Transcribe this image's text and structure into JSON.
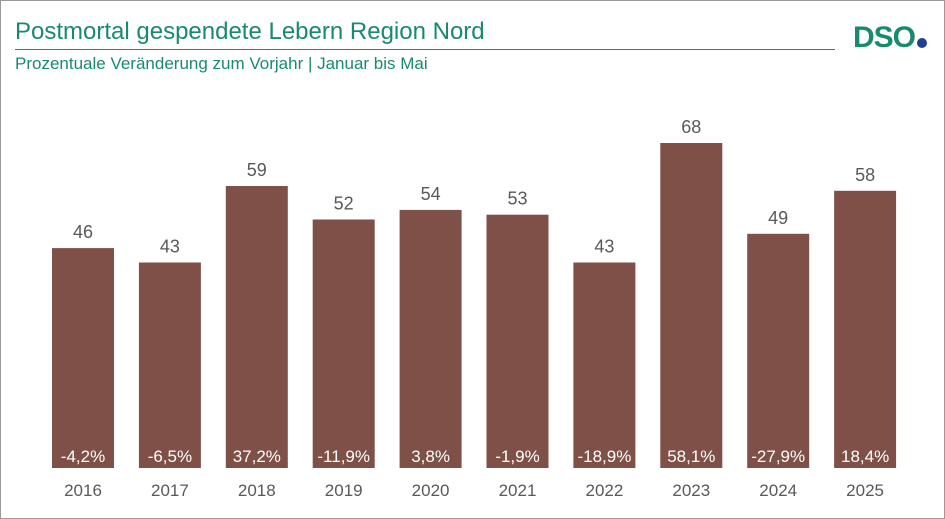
{
  "header": {
    "title": "Postmortal gespendete Lebern Region Nord",
    "subtitle": "Prozentuale Veränderung zum Vorjahr | Januar bis Mai",
    "logo_text": "DSO"
  },
  "colors": {
    "accent": "#1a8a6e",
    "bar": "#7f5048",
    "logo_dot": "#1f3f8f",
    "value_label": "#595959",
    "pct_label": "#ffffff",
    "axis_label": "#595959"
  },
  "chart_data": {
    "type": "bar",
    "title": "Postmortal gespendete Lebern Region Nord",
    "subtitle": "Prozentuale Veränderung zum Vorjahr | Januar bis Mai",
    "categories": [
      "2016",
      "2017",
      "2018",
      "2019",
      "2020",
      "2021",
      "2022",
      "2023",
      "2024",
      "2025"
    ],
    "values": [
      46,
      43,
      59,
      52,
      54,
      53,
      43,
      68,
      49,
      58
    ],
    "change_labels": [
      "-4,2%",
      "-6,5%",
      "37,2%",
      "-11,9%",
      "3,8%",
      "-1,9%",
      "-18,9%",
      "58,1%",
      "-27,9%",
      "18,4%"
    ],
    "xlabel": "",
    "ylabel": "",
    "ylim": [
      0,
      70
    ],
    "grid": false,
    "legend": "none"
  }
}
